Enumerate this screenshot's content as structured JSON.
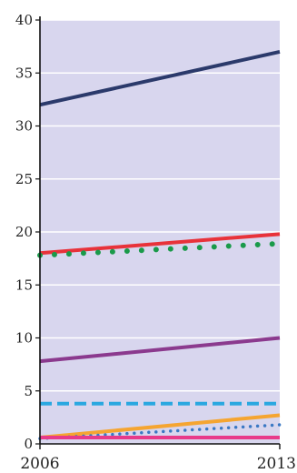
{
  "chart_data": {
    "type": "line",
    "title": "",
    "xlabel": "",
    "ylabel": "",
    "x": [
      2006,
      2013
    ],
    "xticks": [
      "2006",
      "2013"
    ],
    "ylim": [
      0,
      40
    ],
    "yticks": [
      0,
      5,
      10,
      15,
      20,
      25,
      30,
      35,
      40
    ],
    "grid": true,
    "plot_background": "#d8d6ee",
    "grid_color": "#ffffff",
    "axis_color": "#111111",
    "series": [
      {
        "values": [
          32,
          37
        ],
        "color": "#2b3a6b",
        "style": "solid"
      },
      {
        "values": [
          18,
          19.8
        ],
        "color": "#e8323a",
        "style": "solid"
      },
      {
        "values": [
          17.8,
          18.9
        ],
        "color": "#1a9a4a",
        "style": "dotted-large"
      },
      {
        "values": [
          7.8,
          10
        ],
        "color": "#8b3a8e",
        "style": "solid"
      },
      {
        "values": [
          3.8,
          3.8
        ],
        "color": "#2aa8e0",
        "style": "dashed"
      },
      {
        "values": [
          0.6,
          2.7
        ],
        "color": "#f5a531",
        "style": "solid"
      },
      {
        "values": [
          0.5,
          1.8
        ],
        "color": "#3a78c4",
        "style": "dotted-small"
      },
      {
        "values": [
          0.6,
          0.6
        ],
        "color": "#e83a8a",
        "style": "solid"
      }
    ]
  }
}
